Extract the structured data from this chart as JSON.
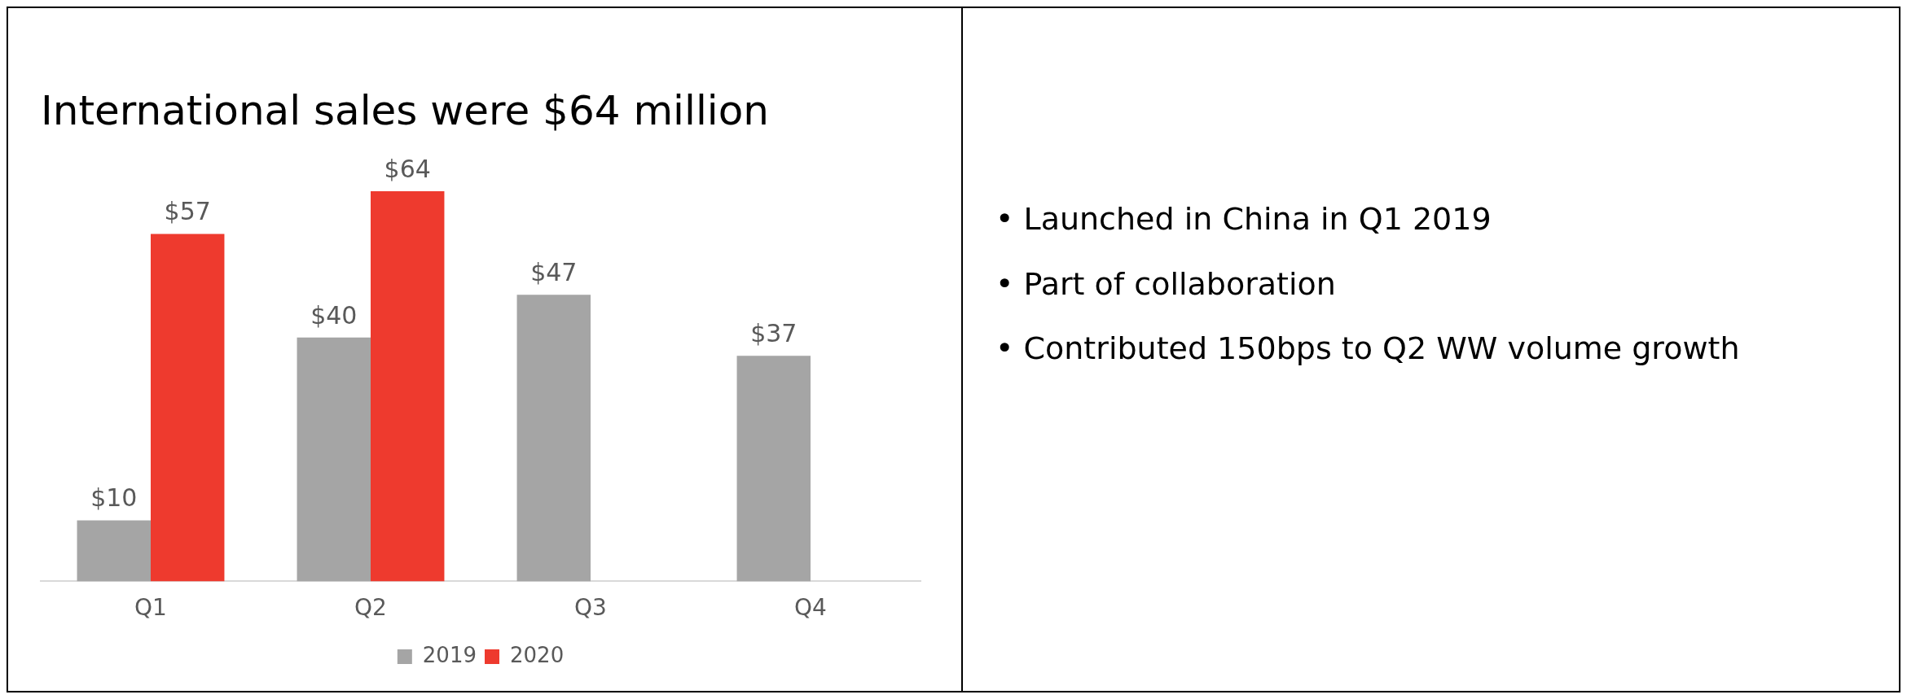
{
  "chart_data": {
    "type": "bar",
    "title": "International sales were $64 million",
    "categories": [
      "Q1",
      "Q2",
      "Q3",
      "Q4"
    ],
    "series": [
      {
        "name": "2019",
        "color": "#a5a5a5",
        "values": [
          10,
          40,
          47,
          37
        ],
        "value_labels": [
          "$10",
          "$40",
          "$47",
          "$37"
        ]
      },
      {
        "name": "2020",
        "color": "#ee3a2e",
        "values": [
          57,
          64,
          null,
          null
        ],
        "value_labels": [
          "$57",
          "$64",
          null,
          null
        ]
      }
    ],
    "legend": "bottom",
    "grid": false,
    "annotations": [
      "• Launched in China in Q1 2019",
      "• Part of collaboration",
      "• Contributed 150bps to Q2 WW volume growth"
    ]
  }
}
